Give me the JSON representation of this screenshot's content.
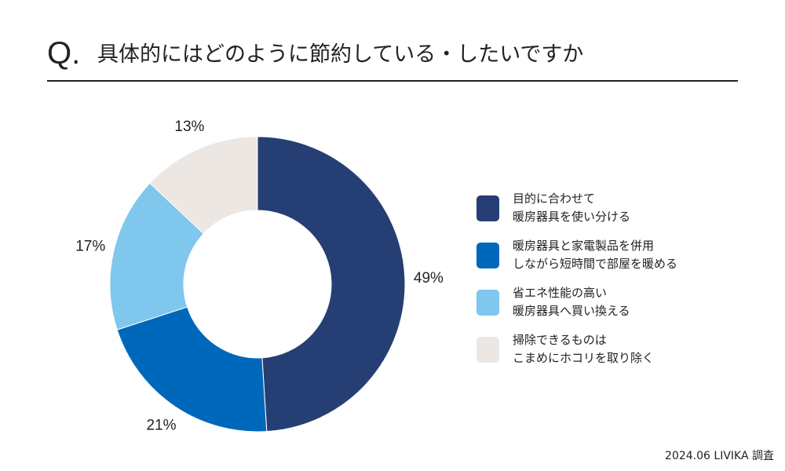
{
  "header": {
    "q_mark": "Q.",
    "title": "具体的にはどのように節約している・したいですか"
  },
  "chart_data": {
    "type": "pie",
    "donut": true,
    "start_angle_deg": 0,
    "direction": "clockwise",
    "legend_position": "right",
    "slices": [
      {
        "label": "目的に合わせて暖房器具を使い分ける",
        "label_lines": [
          "目的に合わせて",
          "暖房器具を使い分ける"
        ],
        "value": 49,
        "value_label": "49%",
        "color": "#253f74"
      },
      {
        "label": "暖房器具と家電製品を併用しながら短時間で部屋を暖める",
        "label_lines": [
          "暖房器具と家電製品を併用",
          "しながら短時間で部屋を暖める"
        ],
        "value": 21,
        "value_label": "21%",
        "color": "#0068bb"
      },
      {
        "label": "省エネ性能の高い暖房器具へ買い換える",
        "label_lines": [
          "省エネ性能の高い",
          "暖房器具へ買い換える"
        ],
        "value": 17,
        "value_label": "17%",
        "color": "#80c7ee"
      },
      {
        "label": "掃除できるものはこまめにホコリを取り除く",
        "label_lines": [
          "掃除できるものは",
          "こまめにホコリを取り除く"
        ],
        "value": 13,
        "value_label": "13%",
        "color": "#ece7e3"
      }
    ]
  },
  "footer": {
    "source": "2024.06 LIVIKA 調査"
  }
}
